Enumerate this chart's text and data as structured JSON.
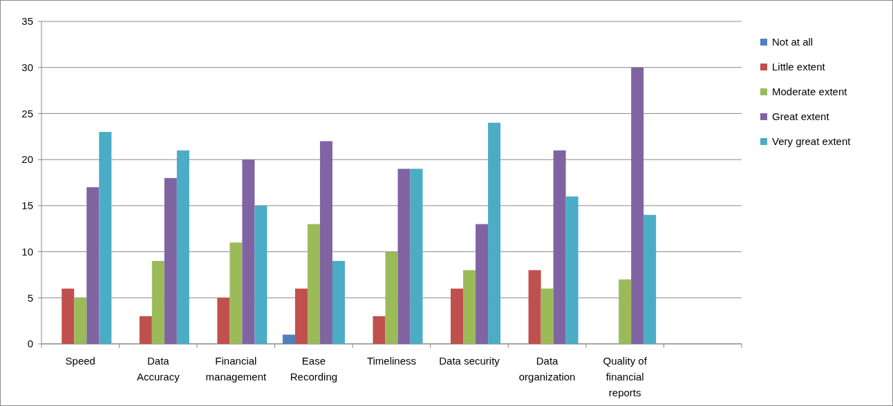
{
  "chart_data": {
    "type": "bar",
    "categories": [
      "Speed",
      "Data\nAccuracy",
      "Financial\nmanagement",
      "Ease\nRecording",
      "Timeliness",
      "Data security",
      "Data\norganization",
      "Quality of\nfinancial\nreports",
      null
    ],
    "series": [
      {
        "name": "Not at all",
        "color": "#4f81bd",
        "values": [
          0,
          0,
          0,
          1,
          0,
          0,
          0,
          0,
          null
        ]
      },
      {
        "name": "Little extent",
        "color": "#c0504d",
        "values": [
          6,
          3,
          5,
          6,
          3,
          6,
          8,
          0,
          null
        ]
      },
      {
        "name": "Moderate extent",
        "color": "#9bbb59",
        "values": [
          5,
          9,
          11,
          13,
          10,
          8,
          6,
          7,
          null
        ]
      },
      {
        "name": "Great extent",
        "color": "#8064a2",
        "values": [
          17,
          18,
          20,
          22,
          19,
          13,
          21,
          30,
          null
        ]
      },
      {
        "name": "Very great extent",
        "color": "#4bacc6",
        "values": [
          23,
          21,
          15,
          9,
          19,
          24,
          16,
          14,
          null
        ]
      }
    ],
    "ylim": [
      0,
      35
    ],
    "yticks": [
      0,
      5,
      10,
      15,
      20,
      25,
      30,
      35
    ],
    "grid": "y",
    "legend": "right"
  }
}
